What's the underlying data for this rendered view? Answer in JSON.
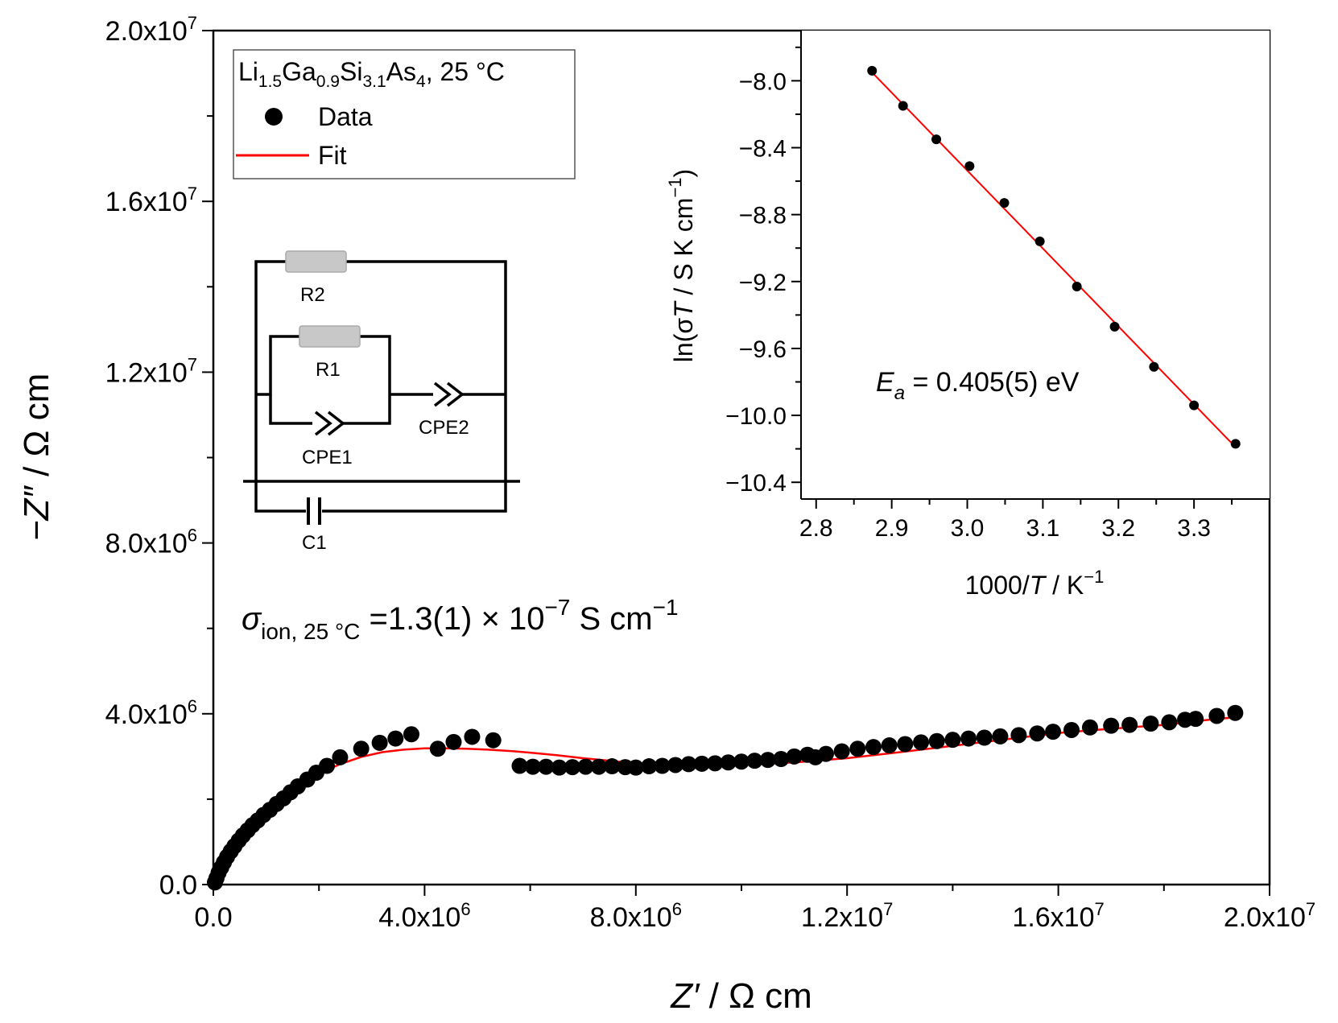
{
  "chart_data": [
    {
      "type": "scatter",
      "title": "",
      "xlabel": "Z′ / Ω cm",
      "ylabel": "−Z″ / Ω cm",
      "xlim": [
        0,
        20000000
      ],
      "ylim": [
        0,
        20000000
      ],
      "x_ticks": [
        0,
        4000000,
        8000000,
        12000000,
        16000000,
        20000000
      ],
      "x_tick_labels": [
        "0.0",
        "4.0x10",
        "8.0x10",
        "1.2x10",
        "1.6x10",
        "2.0x10"
      ],
      "x_tick_exponents": [
        "",
        "6",
        "6",
        "7",
        "7",
        "7"
      ],
      "y_ticks": [
        0,
        4000000,
        8000000,
        12000000,
        16000000,
        20000000
      ],
      "y_tick_labels": [
        "0.0",
        "4.0x10",
        "8.0x10",
        "1.2x10",
        "1.6x10",
        "2.0x10"
      ],
      "y_tick_exponents": [
        "",
        "6",
        "6",
        "7",
        "7",
        "7"
      ],
      "legend": {
        "location": "top-left",
        "title": "Li1.5Ga0.9Si3.1As4, 25 °C",
        "title_parts": [
          "Li",
          "1.5",
          "Ga",
          "0.9",
          "Si",
          "3.1",
          "As",
          "4",
          ", 25 °C"
        ],
        "entries": [
          "Data",
          "Fit"
        ]
      },
      "series": [
        {
          "name": "Data",
          "marker": "circle",
          "color": "#000000",
          "x": [
            30000,
            60000,
            100000,
            150000,
            200000,
            260000,
            330000,
            400000,
            480000,
            560000,
            650000,
            740000,
            840000,
            950000,
            1070000,
            1200000,
            1330000,
            1460000,
            1600000,
            1780000,
            1950000,
            2150000,
            2400000,
            2800000,
            3150000,
            3450000,
            3750000,
            4250000,
            4550000,
            4900000,
            5300000,
            5800000,
            6050000,
            6300000,
            6550000,
            6800000,
            7050000,
            7300000,
            7550000,
            7800000,
            8000000,
            8250000,
            8500000,
            8750000,
            9000000,
            9250000,
            9500000,
            9750000,
            10000000,
            10250000,
            10500000,
            10750000,
            11000000,
            11250000,
            11400000,
            11600000,
            11900000,
            12200000,
            12500000,
            12800000,
            13100000,
            13400000,
            13700000,
            14000000,
            14300000,
            14600000,
            14900000,
            15250000,
            15600000,
            15900000,
            16250000,
            16600000,
            17000000,
            17350000,
            17750000,
            18100000,
            18400000,
            18600000,
            19000000,
            19350000
          ],
          "y": [
            50000,
            150000,
            280000,
            400000,
            520000,
            650000,
            780000,
            900000,
            1030000,
            1150000,
            1270000,
            1390000,
            1500000,
            1630000,
            1750000,
            1890000,
            2020000,
            2160000,
            2300000,
            2460000,
            2620000,
            2780000,
            2980000,
            3180000,
            3320000,
            3420000,
            3520000,
            3180000,
            3340000,
            3460000,
            3380000,
            2780000,
            2760000,
            2760000,
            2740000,
            2750000,
            2760000,
            2760000,
            2770000,
            2750000,
            2740000,
            2770000,
            2780000,
            2800000,
            2820000,
            2830000,
            2840000,
            2860000,
            2880000,
            2900000,
            2920000,
            2940000,
            3000000,
            3040000,
            2980000,
            3060000,
            3120000,
            3180000,
            3220000,
            3260000,
            3290000,
            3330000,
            3360000,
            3390000,
            3420000,
            3440000,
            3470000,
            3500000,
            3540000,
            3580000,
            3620000,
            3680000,
            3720000,
            3740000,
            3770000,
            3800000,
            3860000,
            3880000,
            3950000,
            4020000
          ]
        },
        {
          "name": "Fit",
          "marker": "line",
          "color": "#ff0000",
          "x": [
            0,
            200000,
            400000,
            600000,
            800000,
            1000000,
            1300000,
            1600000,
            2000000,
            2400000,
            2800000,
            3200000,
            3600000,
            4000000,
            4400000,
            4800000,
            5200000,
            5600000,
            6000000,
            6500000,
            7000000,
            7500000,
            8000000,
            8500000,
            9000000,
            9500000,
            10000000,
            10500000,
            11000000,
            12000000,
            13000000,
            14000000,
            15000000,
            16000000,
            17000000,
            18000000,
            19000000,
            19400000
          ],
          "y": [
            0,
            450000,
            850000,
            1200000,
            1500000,
            1750000,
            2050000,
            2320000,
            2600000,
            2820000,
            2990000,
            3100000,
            3160000,
            3190000,
            3190000,
            3180000,
            3160000,
            3130000,
            3090000,
            3030000,
            2960000,
            2900000,
            2840000,
            2810000,
            2800000,
            2800000,
            2810000,
            2830000,
            2860000,
            2960000,
            3100000,
            3250000,
            3400000,
            3550000,
            3650000,
            3740000,
            3880000,
            3920000
          ]
        }
      ],
      "annotation": {
        "symbol": "σ",
        "subscript": "ion, 25 °C",
        "text": "=1.3(1) × 10",
        "exponent": "−7",
        "unit": " S cm",
        "unit_exponent": "−1"
      },
      "circuit": {
        "labels": [
          "R2",
          "R1",
          "CPE1",
          "CPE2",
          "C1"
        ]
      }
    },
    {
      "type": "scatter",
      "title": "",
      "location": "top-right inset",
      "xlabel": "1000/T / K−1",
      "xlabel_parts": [
        "1000/",
        "T",
        " / K",
        "−1"
      ],
      "ylabel": "ln(σT / S K cm−1)",
      "ylabel_parts": [
        "ln(σ",
        "T",
        " / S K cm",
        "−1",
        ")"
      ],
      "xlim": [
        2.78,
        3.4
      ],
      "ylim": [
        -10.5,
        -7.7
      ],
      "x_ticks": [
        2.8,
        2.9,
        3.0,
        3.1,
        3.2,
        3.3
      ],
      "x_tick_labels": [
        "2.8",
        "2.9",
        "3.0",
        "3.1",
        "3.2",
        "3.3"
      ],
      "y_ticks": [
        -8.0,
        -8.4,
        -8.8,
        -9.2,
        -9.6,
        -10.0,
        -10.4
      ],
      "y_tick_labels": [
        "−8.0",
        "−8.4",
        "−8.8",
        "−9.2",
        "−9.6",
        "−10.0",
        "−10.4"
      ],
      "series": [
        {
          "name": "Data",
          "marker": "circle",
          "color": "#000000",
          "x": [
            2.874,
            2.915,
            2.959,
            3.003,
            3.049,
            3.096,
            3.145,
            3.195,
            3.247,
            3.3,
            3.355
          ],
          "y": [
            -7.94,
            -8.15,
            -8.35,
            -8.51,
            -8.73,
            -8.96,
            -9.23,
            -9.47,
            -9.71,
            -9.94,
            -10.17
          ]
        },
        {
          "name": "Fit",
          "marker": "line",
          "color": "#ff0000",
          "x": [
            2.874,
            3.355
          ],
          "y": [
            -7.95,
            -10.19
          ]
        }
      ],
      "annotation": {
        "symbol": "E",
        "subscript": "a",
        "text": " = 0.405(5) eV"
      }
    }
  ]
}
